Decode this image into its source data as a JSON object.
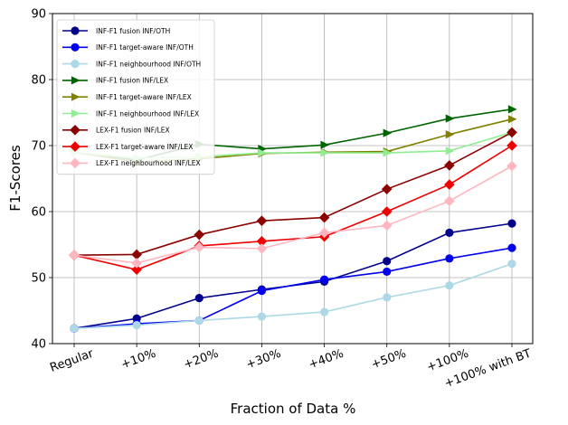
{
  "chart_data": {
    "type": "line",
    "title": "",
    "xlabel": "Fraction of Data %",
    "ylabel": "F1-Scores",
    "ylim": [
      40,
      90
    ],
    "yticks": [
      40,
      50,
      60,
      70,
      80,
      90
    ],
    "grid": true,
    "legend_position": "top-left",
    "categories": [
      "Regular",
      "+10%",
      "+20%",
      "+30%",
      "+40%",
      "+50%",
      "+100%",
      "+100% with BT"
    ],
    "series": [
      {
        "name": "INF-F1 fusion INF/OTH",
        "color": "#00008b",
        "marker": "circle",
        "values": [
          42.3,
          43.8,
          46.9,
          48.2,
          49.4,
          52.5,
          56.8,
          58.2
        ]
      },
      {
        "name": "INF-F1 target-aware INF/OTH",
        "color": "#0000ee",
        "marker": "circle",
        "values": [
          42.3,
          43.0,
          43.5,
          48.0,
          49.7,
          50.9,
          52.9,
          54.5
        ]
      },
      {
        "name": "INF-F1 neighbourhood INF/OTH",
        "color": "#add8e6",
        "marker": "circle",
        "values": [
          42.3,
          42.8,
          43.5,
          44.1,
          44.8,
          47.0,
          48.8,
          52.1
        ]
      },
      {
        "name": "INF-F1 fusion INF/LEX",
        "color": "#006400",
        "marker": "triangle-right",
        "values": [
          69.0,
          67.8,
          70.2,
          69.5,
          70.1,
          71.9,
          74.1,
          75.5
        ]
      },
      {
        "name": "INF-F1 target-aware INF/LEX",
        "color": "#808000",
        "marker": "triangle-right",
        "values": [
          69.0,
          67.5,
          68.0,
          68.8,
          69.0,
          69.1,
          71.7,
          74.0
        ]
      },
      {
        "name": "INF-F1 neighbourhood INF/LEX",
        "color": "#90ee90",
        "marker": "triangle-right",
        "values": [
          69.0,
          68.1,
          68.3,
          68.9,
          68.9,
          68.9,
          69.2,
          72.0
        ]
      },
      {
        "name": "LEX-F1 fusion INF/LEX",
        "color": "#8b0000",
        "marker": "diamond",
        "values": [
          53.4,
          53.5,
          56.5,
          58.6,
          59.1,
          63.4,
          67.0,
          72.0
        ]
      },
      {
        "name": "LEX-F1 target-aware INF/LEX",
        "color": "#ee0000",
        "marker": "diamond",
        "values": [
          53.4,
          51.2,
          54.8,
          55.5,
          56.2,
          60.0,
          64.1,
          70.0
        ]
      },
      {
        "name": "LEX-F1 neighbourhood INF/LEX",
        "color": "#ffb6c1",
        "marker": "diamond",
        "values": [
          53.4,
          52.2,
          54.6,
          54.4,
          56.8,
          57.9,
          61.6,
          66.9
        ]
      }
    ]
  }
}
